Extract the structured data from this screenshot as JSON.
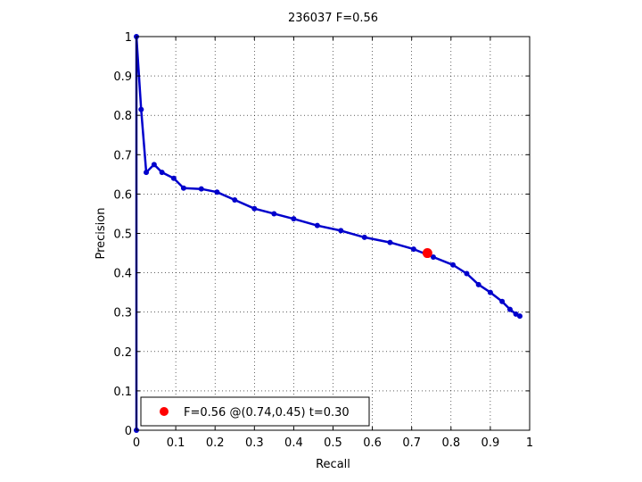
{
  "chart_data": {
    "type": "line",
    "title": "236037 F=0.56",
    "xlabel": "Recall",
    "ylabel": "Precision",
    "xlim": [
      0,
      1
    ],
    "ylim": [
      0,
      1
    ],
    "xticks": [
      0,
      0.1,
      0.2,
      0.3,
      0.4,
      0.5,
      0.6,
      0.7,
      0.8,
      0.9,
      1
    ],
    "yticks": [
      0,
      0.1,
      0.2,
      0.3,
      0.4,
      0.5,
      0.6,
      0.7,
      0.8,
      0.9,
      1
    ],
    "xtick_labels": [
      "0",
      "0.1",
      "0.2",
      "0.3",
      "0.4",
      "0.5",
      "0.6",
      "0.7",
      "0.8",
      "0.9",
      "1"
    ],
    "ytick_labels": [
      "0",
      "0.1",
      "0.2",
      "0.3",
      "0.4",
      "0.5",
      "0.6",
      "0.7",
      "0.8",
      "0.9",
      "1"
    ],
    "grid": true,
    "series": [
      {
        "color": "#0000cc",
        "x": [
          0.0,
          0.0,
          0.012,
          0.025,
          0.045,
          0.065,
          0.095,
          0.12,
          0.165,
          0.205,
          0.25,
          0.3,
          0.35,
          0.4,
          0.46,
          0.52,
          0.58,
          0.645,
          0.705,
          0.755,
          0.805,
          0.84,
          0.87,
          0.9,
          0.93,
          0.95,
          0.965,
          0.975
        ],
        "y": [
          0.0,
          1.0,
          0.815,
          0.655,
          0.675,
          0.655,
          0.64,
          0.615,
          0.613,
          0.605,
          0.585,
          0.563,
          0.55,
          0.537,
          0.52,
          0.507,
          0.49,
          0.477,
          0.46,
          0.44,
          0.42,
          0.398,
          0.37,
          0.35,
          0.327,
          0.307,
          0.295,
          0.29
        ]
      }
    ],
    "best_point": {
      "x": 0.74,
      "y": 0.45,
      "color": "#ff0000"
    },
    "legend": {
      "location": "bottom-left",
      "label": "F=0.56 @(0.74,0.45) t=0.30"
    }
  }
}
